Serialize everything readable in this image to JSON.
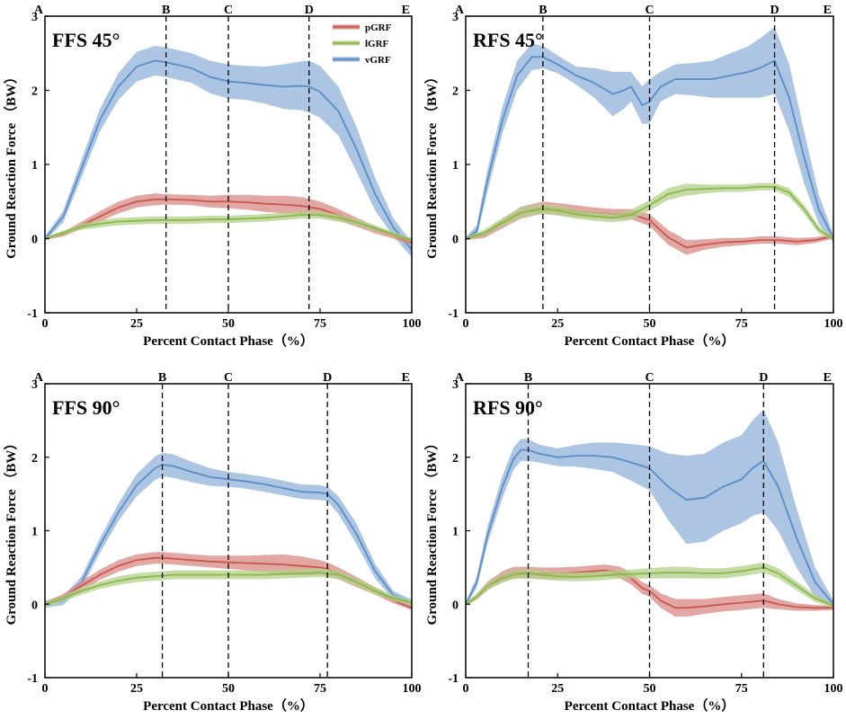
{
  "colors": {
    "pGRF": "#c8574f",
    "lGRF": "#8ab84a",
    "vGRF": "#5a8cc6",
    "pGRF_band": "#d98a84",
    "lGRF_band": "#b3d08a",
    "vGRF_band": "#8fb1da"
  },
  "legend": [
    {
      "key": "pGRF",
      "label": "pGRF"
    },
    {
      "key": "lGRF",
      "label": "lGRF"
    },
    {
      "key": "vGRF",
      "label": "vGRF"
    }
  ],
  "chart_data": [
    {
      "type": "line",
      "title": "FFS 45°",
      "xlabel": "Percent Contact Phase（%）",
      "ylabel": "Ground Reaction Force （BW）",
      "xlim": [
        0,
        100
      ],
      "ylim": [
        -1,
        3
      ],
      "xticks": [
        0,
        25,
        50,
        75,
        100
      ],
      "yticks": [
        -1,
        0,
        1,
        2,
        3
      ],
      "phase_markers": [
        {
          "label": "A",
          "x": 0
        },
        {
          "label": "B",
          "x": 33
        },
        {
          "label": "C",
          "x": 50
        },
        {
          "label": "D",
          "x": 72
        },
        {
          "label": "E",
          "x": 100
        }
      ],
      "has_legend": true,
      "series": [
        {
          "name": "vGRF",
          "x": [
            0,
            5,
            10,
            15,
            20,
            25,
            30,
            33,
            40,
            45,
            50,
            55,
            60,
            65,
            70,
            72,
            75,
            80,
            85,
            90,
            95,
            100
          ],
          "mean": [
            0,
            0.3,
            0.95,
            1.6,
            2.05,
            2.32,
            2.4,
            2.38,
            2.3,
            2.18,
            2.12,
            2.1,
            2.07,
            2.05,
            2.06,
            2.05,
            1.98,
            1.72,
            1.2,
            0.6,
            0.15,
            -0.15
          ],
          "sd": [
            0.03,
            0.08,
            0.12,
            0.15,
            0.18,
            0.2,
            0.2,
            0.2,
            0.2,
            0.22,
            0.23,
            0.23,
            0.25,
            0.3,
            0.33,
            0.35,
            0.35,
            0.33,
            0.3,
            0.22,
            0.12,
            0.1
          ]
        },
        {
          "name": "pGRF",
          "x": [
            0,
            5,
            10,
            15,
            20,
            25,
            30,
            33,
            40,
            45,
            50,
            55,
            60,
            65,
            70,
            75,
            80,
            85,
            90,
            95,
            100
          ],
          "mean": [
            0,
            0.06,
            0.18,
            0.3,
            0.42,
            0.5,
            0.53,
            0.53,
            0.52,
            0.5,
            0.5,
            0.49,
            0.47,
            0.46,
            0.44,
            0.4,
            0.32,
            0.22,
            0.12,
            0.04,
            -0.05
          ],
          "sd": [
            0.02,
            0.03,
            0.05,
            0.07,
            0.08,
            0.08,
            0.08,
            0.07,
            0.07,
            0.08,
            0.09,
            0.1,
            0.11,
            0.12,
            0.12,
            0.1,
            0.08,
            0.06,
            0.05,
            0.04,
            0.04
          ]
        },
        {
          "name": "lGRF",
          "x": [
            0,
            5,
            10,
            15,
            20,
            25,
            30,
            35,
            40,
            45,
            50,
            55,
            60,
            65,
            70,
            75,
            80,
            85,
            90,
            95,
            100
          ],
          "mean": [
            0,
            0.08,
            0.16,
            0.2,
            0.23,
            0.24,
            0.25,
            0.25,
            0.25,
            0.26,
            0.26,
            0.27,
            0.28,
            0.3,
            0.32,
            0.32,
            0.28,
            0.22,
            0.14,
            0.06,
            -0.02
          ],
          "sd": [
            0.02,
            0.03,
            0.04,
            0.05,
            0.05,
            0.05,
            0.05,
            0.05,
            0.05,
            0.05,
            0.05,
            0.05,
            0.05,
            0.05,
            0.05,
            0.05,
            0.05,
            0.04,
            0.04,
            0.03,
            0.03
          ]
        }
      ]
    },
    {
      "type": "line",
      "title": "RFS 45°",
      "xlabel": "Percent Contact Phase（%）",
      "ylabel": "Ground Reaction Force （BW）",
      "xlim": [
        0,
        100
      ],
      "ylim": [
        -1,
        3
      ],
      "xticks": [
        0,
        25,
        50,
        75,
        100
      ],
      "yticks": [
        -1,
        0,
        1,
        2,
        3
      ],
      "phase_markers": [
        {
          "label": "A",
          "x": 0
        },
        {
          "label": "B",
          "x": 21
        },
        {
          "label": "C",
          "x": 50
        },
        {
          "label": "D",
          "x": 84
        },
        {
          "label": "E",
          "x": 100
        }
      ],
      "has_legend": false,
      "series": [
        {
          "name": "vGRF",
          "x": [
            0,
            3,
            6,
            10,
            14,
            18,
            21,
            25,
            30,
            35,
            40,
            43,
            45,
            48,
            50,
            53,
            57,
            62,
            67,
            72,
            77,
            80,
            84,
            88,
            92,
            96,
            100
          ],
          "mean": [
            0,
            0.1,
            0.8,
            1.6,
            2.2,
            2.45,
            2.45,
            2.35,
            2.2,
            2.1,
            1.95,
            2.0,
            2.05,
            1.8,
            1.85,
            2.05,
            2.15,
            2.15,
            2.15,
            2.2,
            2.25,
            2.3,
            2.4,
            1.9,
            1.1,
            0.4,
            0
          ],
          "sd": [
            0.02,
            0.08,
            0.15,
            0.18,
            0.2,
            0.18,
            0.15,
            0.12,
            0.12,
            0.2,
            0.3,
            0.25,
            0.2,
            0.25,
            0.3,
            0.2,
            0.2,
            0.22,
            0.25,
            0.3,
            0.35,
            0.4,
            0.45,
            0.45,
            0.35,
            0.2,
            0.05
          ]
        },
        {
          "name": "pGRF",
          "x": [
            0,
            5,
            10,
            15,
            21,
            25,
            30,
            35,
            40,
            45,
            50,
            55,
            60,
            65,
            70,
            75,
            80,
            85,
            90,
            95,
            100
          ],
          "mean": [
            0,
            0.05,
            0.2,
            0.35,
            0.42,
            0.4,
            0.37,
            0.35,
            0.33,
            0.33,
            0.25,
            0.02,
            -0.12,
            -0.08,
            -0.05,
            -0.04,
            -0.02,
            -0.02,
            -0.04,
            -0.02,
            0.03
          ],
          "sd": [
            0.02,
            0.04,
            0.06,
            0.08,
            0.08,
            0.08,
            0.08,
            0.07,
            0.07,
            0.07,
            0.08,
            0.1,
            0.1,
            0.07,
            0.06,
            0.05,
            0.05,
            0.05,
            0.05,
            0.04,
            0.03
          ]
        },
        {
          "name": "lGRF",
          "x": [
            0,
            5,
            10,
            15,
            21,
            25,
            30,
            35,
            40,
            45,
            50,
            55,
            60,
            65,
            70,
            75,
            80,
            84,
            88,
            92,
            96,
            100
          ],
          "mean": [
            0,
            0.08,
            0.22,
            0.35,
            0.4,
            0.38,
            0.33,
            0.3,
            0.28,
            0.32,
            0.45,
            0.6,
            0.66,
            0.67,
            0.68,
            0.68,
            0.7,
            0.7,
            0.62,
            0.4,
            0.12,
            0
          ],
          "sd": [
            0.02,
            0.04,
            0.06,
            0.07,
            0.07,
            0.07,
            0.06,
            0.06,
            0.06,
            0.07,
            0.07,
            0.08,
            0.08,
            0.06,
            0.05,
            0.05,
            0.05,
            0.05,
            0.06,
            0.06,
            0.05,
            0.03
          ]
        }
      ]
    },
    {
      "type": "line",
      "title": "FFS 90°",
      "xlabel": "Percent Contact Phase（%）",
      "ylabel": "Ground Reaction Force （BW）",
      "xlim": [
        0,
        100
      ],
      "ylim": [
        -1,
        3
      ],
      "xticks": [
        0,
        25,
        50,
        75,
        100
      ],
      "yticks": [
        -1,
        0,
        1,
        2,
        3
      ],
      "phase_markers": [
        {
          "label": "A",
          "x": 0
        },
        {
          "label": "B",
          "x": 32
        },
        {
          "label": "C",
          "x": 50
        },
        {
          "label": "D",
          "x": 77
        },
        {
          "label": "E",
          "x": 100
        }
      ],
      "has_legend": false,
      "series": [
        {
          "name": "vGRF",
          "x": [
            0,
            5,
            10,
            15,
            20,
            25,
            30,
            32,
            35,
            40,
            45,
            50,
            55,
            60,
            65,
            70,
            75,
            77,
            80,
            85,
            90,
            95,
            100
          ],
          "mean": [
            0,
            0.05,
            0.3,
            0.8,
            1.25,
            1.62,
            1.85,
            1.9,
            1.88,
            1.8,
            1.73,
            1.7,
            1.67,
            1.63,
            1.58,
            1.53,
            1.52,
            1.5,
            1.35,
            0.95,
            0.45,
            0.12,
            0.02
          ],
          "sd": [
            0.05,
            0.06,
            0.08,
            0.1,
            0.12,
            0.15,
            0.16,
            0.16,
            0.16,
            0.14,
            0.12,
            0.1,
            0.1,
            0.1,
            0.1,
            0.1,
            0.1,
            0.1,
            0.12,
            0.14,
            0.1,
            0.06,
            0.04
          ]
        },
        {
          "name": "pGRF",
          "x": [
            0,
            5,
            10,
            15,
            20,
            25,
            30,
            32,
            35,
            40,
            45,
            50,
            55,
            60,
            65,
            70,
            75,
            77,
            80,
            85,
            90,
            95,
            100
          ],
          "mean": [
            0,
            0.1,
            0.25,
            0.4,
            0.52,
            0.6,
            0.63,
            0.63,
            0.62,
            0.6,
            0.58,
            0.57,
            0.56,
            0.55,
            0.54,
            0.52,
            0.5,
            0.48,
            0.42,
            0.3,
            0.18,
            0.05,
            -0.05
          ],
          "sd": [
            0.03,
            0.04,
            0.06,
            0.07,
            0.08,
            0.08,
            0.08,
            0.08,
            0.08,
            0.08,
            0.08,
            0.09,
            0.1,
            0.12,
            0.14,
            0.13,
            0.1,
            0.09,
            0.08,
            0.07,
            0.05,
            0.04,
            0.03
          ]
        },
        {
          "name": "lGRF",
          "x": [
            0,
            5,
            10,
            15,
            20,
            25,
            30,
            35,
            40,
            45,
            50,
            55,
            60,
            65,
            70,
            75,
            80,
            85,
            90,
            95,
            100
          ],
          "mean": [
            0,
            0.08,
            0.18,
            0.26,
            0.32,
            0.36,
            0.38,
            0.4,
            0.4,
            0.4,
            0.4,
            0.4,
            0.4,
            0.41,
            0.42,
            0.43,
            0.4,
            0.3,
            0.18,
            0.08,
            0.02
          ],
          "sd": [
            0.03,
            0.04,
            0.05,
            0.05,
            0.06,
            0.06,
            0.06,
            0.06,
            0.06,
            0.06,
            0.06,
            0.06,
            0.06,
            0.06,
            0.06,
            0.06,
            0.06,
            0.05,
            0.05,
            0.04,
            0.03
          ]
        }
      ]
    },
    {
      "type": "line",
      "title": "RFS 90°",
      "xlabel": "Percent Contact Phase（%）",
      "ylabel": "Ground Reaction Force （BW）",
      "xlim": [
        0,
        100
      ],
      "ylim": [
        -1,
        3
      ],
      "xticks": [
        0,
        25,
        50,
        75,
        100
      ],
      "yticks": [
        -1,
        0,
        1,
        2,
        3
      ],
      "phase_markers": [
        {
          "label": "A",
          "x": 0
        },
        {
          "label": "B",
          "x": 17
        },
        {
          "label": "C",
          "x": 50
        },
        {
          "label": "D",
          "x": 81
        },
        {
          "label": "E",
          "x": 100
        }
      ],
      "has_legend": false,
      "series": [
        {
          "name": "vGRF",
          "x": [
            0,
            3,
            6,
            10,
            13,
            15,
            17,
            20,
            25,
            30,
            35,
            40,
            45,
            50,
            55,
            60,
            65,
            70,
            75,
            78,
            81,
            85,
            90,
            95,
            100
          ],
          "mean": [
            0,
            0.3,
            0.95,
            1.6,
            1.98,
            2.1,
            2.1,
            2.05,
            2.0,
            2.02,
            2.02,
            2.0,
            1.93,
            1.85,
            1.6,
            1.42,
            1.45,
            1.6,
            1.7,
            1.85,
            1.95,
            1.6,
            0.9,
            0.3,
            0
          ],
          "sd": [
            0.02,
            0.08,
            0.12,
            0.15,
            0.15,
            0.15,
            0.15,
            0.12,
            0.12,
            0.15,
            0.18,
            0.2,
            0.25,
            0.3,
            0.45,
            0.6,
            0.6,
            0.6,
            0.6,
            0.65,
            0.7,
            0.6,
            0.4,
            0.2,
            0.05
          ]
        },
        {
          "name": "pGRF",
          "x": [
            0,
            3,
            6,
            10,
            13,
            17,
            20,
            25,
            30,
            35,
            38,
            42,
            45,
            48,
            50,
            53,
            57,
            60,
            65,
            70,
            75,
            81,
            85,
            90,
            95,
            100
          ],
          "mean": [
            0,
            0.1,
            0.25,
            0.38,
            0.43,
            0.43,
            0.42,
            0.42,
            0.43,
            0.45,
            0.46,
            0.43,
            0.35,
            0.22,
            0.18,
            0.05,
            -0.05,
            -0.05,
            -0.03,
            0.0,
            0.02,
            0.05,
            0.0,
            -0.04,
            -0.05,
            -0.05
          ],
          "sd": [
            0.02,
            0.04,
            0.06,
            0.07,
            0.08,
            0.08,
            0.08,
            0.08,
            0.08,
            0.08,
            0.08,
            0.08,
            0.08,
            0.08,
            0.08,
            0.1,
            0.12,
            0.12,
            0.1,
            0.1,
            0.1,
            0.1,
            0.07,
            0.05,
            0.04,
            0.03
          ]
        },
        {
          "name": "lGRF",
          "x": [
            0,
            3,
            6,
            10,
            13,
            17,
            20,
            25,
            30,
            35,
            40,
            45,
            50,
            55,
            60,
            65,
            70,
            75,
            81,
            85,
            90,
            95,
            100
          ],
          "mean": [
            0,
            0.1,
            0.25,
            0.35,
            0.4,
            0.42,
            0.4,
            0.38,
            0.37,
            0.38,
            0.4,
            0.41,
            0.42,
            0.43,
            0.43,
            0.42,
            0.42,
            0.45,
            0.5,
            0.42,
            0.25,
            0.08,
            -0.02
          ],
          "sd": [
            0.02,
            0.04,
            0.05,
            0.06,
            0.06,
            0.06,
            0.06,
            0.06,
            0.06,
            0.06,
            0.06,
            0.06,
            0.07,
            0.08,
            0.08,
            0.07,
            0.07,
            0.07,
            0.07,
            0.07,
            0.06,
            0.05,
            0.03
          ]
        }
      ]
    }
  ]
}
